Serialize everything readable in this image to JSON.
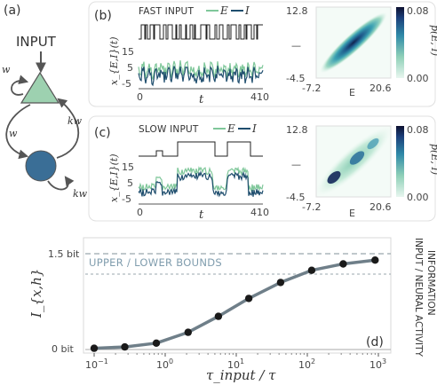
{
  "panels": {
    "a": "(a)",
    "b": "(b)",
    "c": "(c)",
    "d": "(d)"
  },
  "diagram": {
    "input_label": "INPUT",
    "w_self": "w",
    "w_down": "w",
    "kw_up": "kw",
    "kw_self": "kw",
    "colors": {
      "excitatory": "#9dd1b0",
      "inhibitory": "#3a6e96",
      "arrow": "#555555"
    }
  },
  "fast": {
    "caption": "FAST INPUT",
    "legend_E": "E",
    "legend_I": "I",
    "ylabel": "x_{E,I}(t)",
    "xlabel": "t",
    "yticks": [
      "15",
      "5",
      "-5"
    ],
    "xticks": [
      "0",
      "410"
    ]
  },
  "slow": {
    "caption": "SLOW INPUT",
    "legend_E": "E",
    "legend_I": "I",
    "ylabel": "x_{E,I}(t)",
    "xlabel": "t",
    "yticks": [
      "15",
      "5",
      "-5"
    ],
    "xticks": [
      "0",
      "410"
    ]
  },
  "density_fast": {
    "ytop": "12.8",
    "ybottom": "-4.5",
    "ydash": "—",
    "xleft": "-7.2",
    "xright": "20.6",
    "xlabel": "E",
    "cbar_top": "0.08",
    "cbar_bottom": "0.00",
    "cbar_label": "p(E, I)"
  },
  "density_slow": {
    "ytop": "12.8",
    "ybottom": "-4.5",
    "ydash": "—",
    "xleft": "-7.2",
    "xright": "20.6",
    "xlabel": "E",
    "cbar_top": "0.08",
    "cbar_bottom": "0.00",
    "cbar_label": "p(E, I)"
  },
  "colors": {
    "E_line": "#7fc79a",
    "I_line": "#1f4e6e",
    "curve": "#6f7f89",
    "marker": "#1a1a1a",
    "bound_line": "#9aa7ae",
    "bound_text": "#7f9cad"
  },
  "chart_data": {
    "type": "line",
    "title": "",
    "xlabel": "τ_input / τ",
    "ylabel": "I_{x,h}",
    "xscale": "log",
    "xlim": [
      0.1,
      1000
    ],
    "ylim": [
      0,
      1.5
    ],
    "xticks": [
      "10^-1",
      "10^0",
      "10^1",
      "10^2",
      "10^3"
    ],
    "yticks": [
      "0 bit",
      "1.5 bit"
    ],
    "annotation": "UPPER / LOWER BOUNDS",
    "upper_bound": 1.5,
    "lower_bound": 1.18,
    "right_label_line1": "INFORMATION",
    "right_label_line2": "INPUT / NEURAL ACTIVITY",
    "x": [
      0.1,
      0.27,
      0.75,
      2.1,
      5.6,
      15,
      42,
      115,
      320,
      900
    ],
    "y": [
      0.02,
      0.04,
      0.1,
      0.27,
      0.52,
      0.8,
      1.05,
      1.24,
      1.34,
      1.4
    ]
  }
}
